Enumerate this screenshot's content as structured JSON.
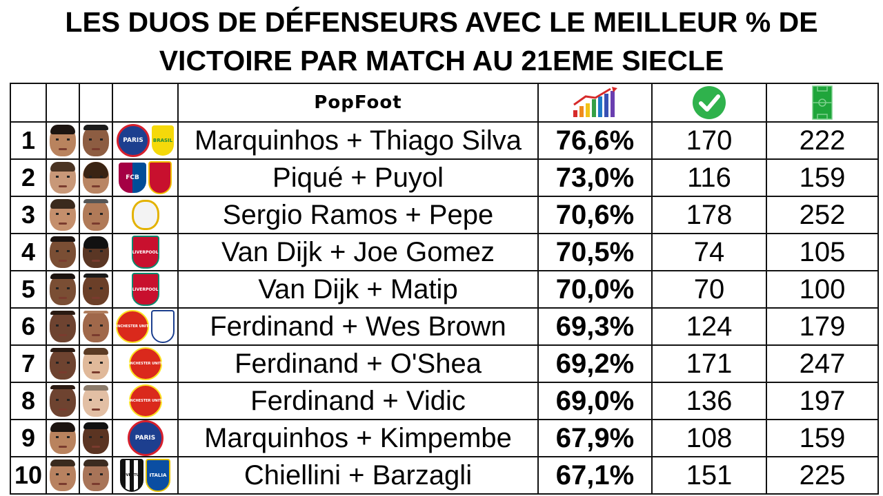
{
  "title": "LES DUOS DE DÉFENSEURS AVEC LE MEILLEUR % DE VICTOIRE PAR MATCH AU 21EME SIECLE",
  "header": {
    "brand": "PopFoot",
    "icons": [
      "bar-chart-icon",
      "checkmark-icon",
      "football-pitch-icon"
    ]
  },
  "rows": [
    {
      "rank": "1",
      "names": "Marquinhos + Thiago Silva",
      "pct": "76,6%",
      "wins": "170",
      "matches": "222",
      "logos": [
        "PARIS",
        "BRASIL"
      ]
    },
    {
      "rank": "2",
      "names": "Piqué + Puyol",
      "pct": "73,0%",
      "wins": "116",
      "matches": "159",
      "logos": [
        "FCB",
        ""
      ]
    },
    {
      "rank": "3",
      "names": "Sergio Ramos + Pepe",
      "pct": "70,6%",
      "wins": "178",
      "matches": "252",
      "logos": [
        ""
      ]
    },
    {
      "rank": "4",
      "names": "Van Dijk + Joe Gomez",
      "pct": "70,5%",
      "wins": "74",
      "matches": "105",
      "logos": [
        "LIVERPOOL"
      ]
    },
    {
      "rank": "5",
      "names": "Van Dijk + Matip",
      "pct": "70,0%",
      "wins": "70",
      "matches": "100",
      "logos": [
        "LIVERPOOL"
      ]
    },
    {
      "rank": "6",
      "names": "Ferdinand + Wes Brown",
      "pct": "69,3%",
      "wins": "124",
      "matches": "179",
      "logos": [
        "MANCHESTER UNITED",
        ""
      ]
    },
    {
      "rank": "7",
      "names": "Ferdinand + O'Shea",
      "pct": "69,2%",
      "wins": "171",
      "matches": "247",
      "logos": [
        "MANCHESTER UNITED"
      ]
    },
    {
      "rank": "8",
      "names": "Ferdinand + Vidic",
      "pct": "69,0%",
      "wins": "136",
      "matches": "197",
      "logos": [
        "MANCHESTER UNITED"
      ]
    },
    {
      "rank": "9",
      "names": "Marquinhos + Kimpembe",
      "pct": "67,9%",
      "wins": "108",
      "matches": "159",
      "logos": [
        "PARIS"
      ]
    },
    {
      "rank": "10",
      "names": "Chiellini + Barzagli",
      "pct": "67,1%",
      "wins": "151",
      "matches": "225",
      "logos": [
        "JUVENTUS",
        "ITALIA"
      ]
    }
  ],
  "colors": {
    "psg": "#1d3f8f",
    "brasil": "#f5d90a",
    "barca": "#a50044",
    "spain": "#c8102e",
    "real": "#f3f3f3",
    "liverpool": "#c8102e",
    "manutd": "#da291c",
    "england": "#ffffff",
    "juventus": "#111111",
    "italia": "#0b4ea2",
    "check": "#2fb24c",
    "pitch": "#1fa53b"
  }
}
